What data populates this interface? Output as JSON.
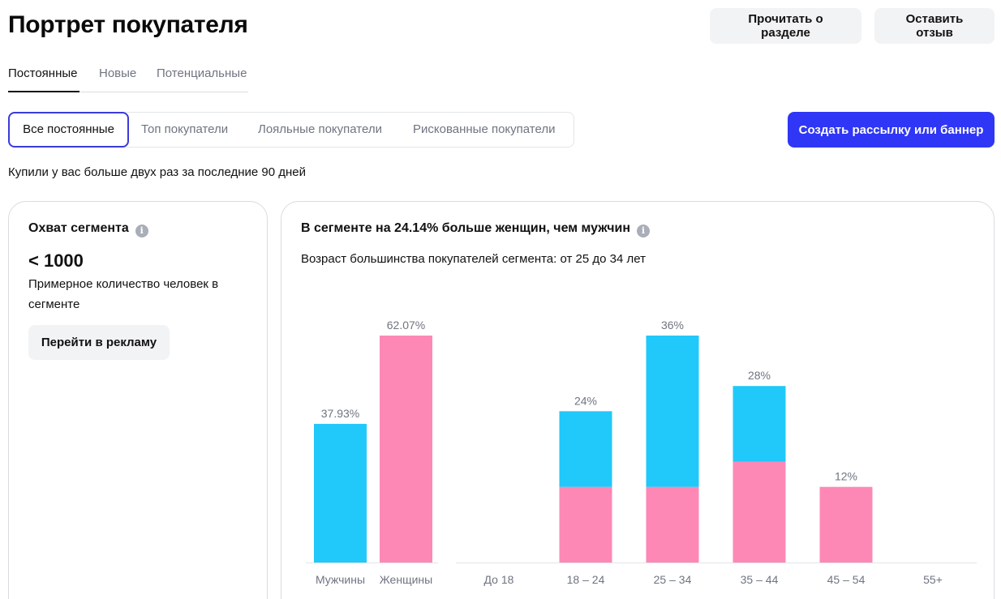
{
  "header": {
    "title": "Портрет покупателя",
    "read_label": "Прочитать о разделе",
    "feedback_label": "Оставить отзыв"
  },
  "tabs": [
    {
      "label": "Постоянные",
      "active": true
    },
    {
      "label": "Новые",
      "active": false
    },
    {
      "label": "Потенциальные",
      "active": false
    }
  ],
  "segments": [
    {
      "label": "Все постоянные",
      "active": true
    },
    {
      "label": "Топ покупатели",
      "active": false
    },
    {
      "label": "Лояльные покупатели",
      "active": false
    },
    {
      "label": "Рискованные покупатели",
      "active": false
    }
  ],
  "create_label": "Создать рассылку или баннер",
  "subtitle": "Купили у вас больше двух раз за последние 90 дней",
  "reach_card": {
    "title": "Охват сегмента",
    "value": "< 1000",
    "desc": "Примерное количество человек в сегменте",
    "button": "Перейти в рекламу"
  },
  "gender_card": {
    "title": "В сегменте на 24.14% больше женщин, чем мужчин",
    "subtitle": "Возраст большинства покупателей сегмента: от 25 до 34 лет"
  },
  "colors": {
    "men": "#21c8fa",
    "women": "#fd88b5",
    "accent": "#2f36f5"
  },
  "chart_data": [
    {
      "type": "bar",
      "categories": [
        "Мужчины",
        "Женщины"
      ],
      "values": [
        37.93,
        62.07
      ],
      "value_labels": [
        "37.93%",
        "62.07%"
      ],
      "ylim": [
        0,
        62.07
      ]
    },
    {
      "type": "bar",
      "stacked": true,
      "categories": [
        "До 18",
        "18 – 24",
        "25 – 34",
        "35 – 44",
        "45 – 54",
        "55+"
      ],
      "totals": [
        0,
        24,
        36,
        28,
        12,
        0
      ],
      "total_labels": [
        "",
        "24%",
        "36%",
        "28%",
        "12%",
        ""
      ],
      "series": [
        {
          "values": [
            0,
            12,
            12,
            16,
            12,
            0
          ]
        },
        {
          "values": [
            0,
            12,
            24,
            12,
            0,
            0
          ]
        }
      ],
      "ylim": [
        0,
        36
      ]
    }
  ]
}
